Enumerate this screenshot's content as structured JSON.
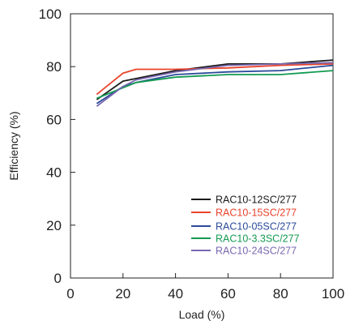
{
  "chart_data": {
    "type": "line",
    "title": "",
    "xlabel": "Load (%)",
    "ylabel": "Efficiency (%)",
    "xlim": [
      0,
      100
    ],
    "ylim": [
      0,
      100
    ],
    "xticks": [
      "0",
      "20",
      "40",
      "60",
      "80",
      "100"
    ],
    "yticks": [
      "0",
      "20",
      "40",
      "60",
      "80",
      "100"
    ],
    "grid": false,
    "legend_position": "bottom-right",
    "series": [
      {
        "name": "RAC10-12SC/277",
        "color": "#1a1a1a",
        "x": [
          10,
          20,
          25,
          40,
          60,
          80,
          100
        ],
        "y": [
          67.5,
          74.5,
          75.5,
          78.5,
          81,
          81,
          82.5
        ]
      },
      {
        "name": "RAC10-15SC/277",
        "color": "#e8432c",
        "x": [
          10,
          20,
          25,
          40,
          60,
          80,
          100
        ],
        "y": [
          69.5,
          77.5,
          79,
          79,
          79.5,
          80.5,
          81
        ]
      },
      {
        "name": "RAC10-05SC/277",
        "color": "#2a4a9a",
        "x": [
          10,
          20,
          25,
          40,
          60,
          80,
          100
        ],
        "y": [
          66,
          72.5,
          74,
          77,
          78,
          78.5,
          80.5
        ]
      },
      {
        "name": "RAC10-3.3SC/277",
        "color": "#149a52",
        "x": [
          10,
          20,
          25,
          40,
          60,
          80,
          100
        ],
        "y": [
          68,
          72,
          74,
          76,
          77,
          77,
          78.5
        ]
      },
      {
        "name": "RAC10-24SC/277",
        "color": "#7a68b0",
        "x": [
          10,
          20,
          25,
          40,
          60,
          80,
          100
        ],
        "y": [
          65,
          72.5,
          75,
          78,
          80.5,
          81,
          81.5
        ]
      }
    ]
  }
}
